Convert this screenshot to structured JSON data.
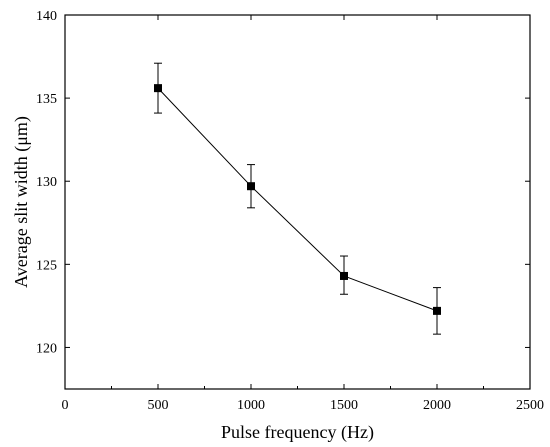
{
  "chart_data": {
    "type": "line",
    "title": "",
    "xlabel": "Pulse frequency (Hz)",
    "ylabel": "Average slit width (μm)",
    "xlim": [
      0,
      2500
    ],
    "ylim": [
      117.5,
      140
    ],
    "x_ticks": [
      0,
      500,
      1000,
      1500,
      2000,
      2500
    ],
    "y_ticks": [
      120,
      125,
      130,
      135,
      140
    ],
    "x_tick_labels": [
      "0",
      "500",
      "1000",
      "1500",
      "2000",
      "2500"
    ],
    "y_tick_labels": [
      "120",
      "125",
      "130",
      "135",
      "140"
    ],
    "grid": false,
    "marker": "square",
    "color": "#000000",
    "series": [
      {
        "x": [
          500,
          1000,
          1500,
          2000
        ],
        "y": [
          135.6,
          129.7,
          124.3,
          122.2
        ],
        "err_low": [
          134.1,
          128.4,
          123.2,
          120.8
        ],
        "err_high": [
          137.1,
          131.0,
          125.5,
          123.6
        ]
      }
    ]
  }
}
